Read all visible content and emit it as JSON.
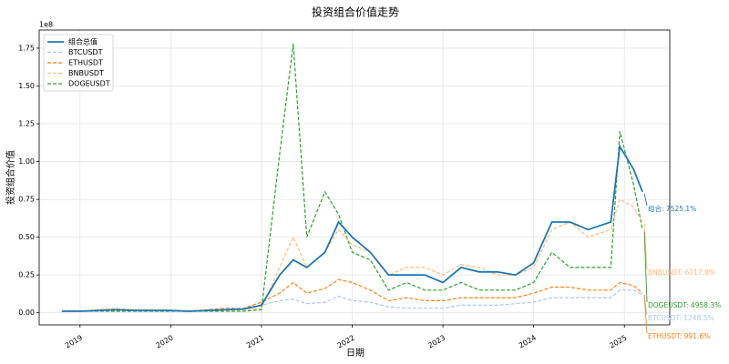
{
  "chart_data": {
    "type": "line",
    "title": "投资组合价值走势",
    "x_label": "日期",
    "y_label": "投资组合价值",
    "y_offset_label": "1e8",
    "x": [
      2018.8,
      2019.0,
      2019.2,
      2019.4,
      2019.6,
      2019.8,
      2020.0,
      2020.2,
      2020.4,
      2020.6,
      2020.8,
      2021.0,
      2021.2,
      2021.35,
      2021.5,
      2021.7,
      2021.85,
      2022.0,
      2022.2,
      2022.4,
      2022.6,
      2022.8,
      2023.0,
      2023.2,
      2023.4,
      2023.6,
      2023.8,
      2024.0,
      2024.2,
      2024.4,
      2024.6,
      2024.85,
      2024.95,
      2025.1,
      2025.2
    ],
    "series": [
      {
        "name": "组合总值",
        "color": "#1f77b4",
        "dashed": false,
        "values": [
          0.01,
          0.01,
          0.015,
          0.02,
          0.015,
          0.015,
          0.015,
          0.01,
          0.015,
          0.02,
          0.025,
          0.05,
          0.25,
          0.35,
          0.3,
          0.4,
          0.6,
          0.5,
          0.4,
          0.25,
          0.25,
          0.25,
          0.2,
          0.3,
          0.27,
          0.27,
          0.25,
          0.33,
          0.6,
          0.6,
          0.55,
          0.6,
          1.1,
          0.95,
          0.8
        ]
      },
      {
        "name": "BTCUSDT",
        "color": "#aec7e8",
        "dashed": true,
        "values": [
          0.01,
          0.01,
          0.015,
          0.02,
          0.015,
          0.015,
          0.015,
          0.01,
          0.015,
          0.02,
          0.03,
          0.05,
          0.08,
          0.09,
          0.06,
          0.07,
          0.11,
          0.08,
          0.07,
          0.04,
          0.03,
          0.03,
          0.03,
          0.05,
          0.05,
          0.05,
          0.06,
          0.07,
          0.1,
          0.1,
          0.1,
          0.1,
          0.15,
          0.15,
          0.12
        ]
      },
      {
        "name": "ETHUSDT",
        "color": "#ff7f0e",
        "dashed": true,
        "values": [
          0.01,
          0.01,
          0.015,
          0.02,
          0.015,
          0.015,
          0.015,
          0.01,
          0.02,
          0.03,
          0.03,
          0.07,
          0.13,
          0.2,
          0.13,
          0.16,
          0.22,
          0.2,
          0.15,
          0.08,
          0.1,
          0.08,
          0.08,
          0.1,
          0.1,
          0.1,
          0.1,
          0.13,
          0.17,
          0.17,
          0.15,
          0.15,
          0.2,
          0.18,
          0.13
        ]
      },
      {
        "name": "BNBUSDT",
        "color": "#ffbb78",
        "dashed": true,
        "values": [
          0.01,
          0.01,
          0.02,
          0.03,
          0.02,
          0.02,
          0.015,
          0.01,
          0.015,
          0.02,
          0.02,
          0.03,
          0.3,
          0.5,
          0.3,
          0.4,
          0.55,
          0.45,
          0.4,
          0.25,
          0.3,
          0.3,
          0.25,
          0.32,
          0.3,
          0.25,
          0.25,
          0.3,
          0.55,
          0.6,
          0.5,
          0.55,
          0.75,
          0.7,
          0.6
        ]
      },
      {
        "name": "DOGEUSDT",
        "color": "#2ca02c",
        "dashed": true,
        "values": [
          0.01,
          0.01,
          0.01,
          0.01,
          0.01,
          0.01,
          0.01,
          0.01,
          0.01,
          0.01,
          0.01,
          0.02,
          1.05,
          1.78,
          0.5,
          0.8,
          0.65,
          0.4,
          0.35,
          0.15,
          0.2,
          0.15,
          0.15,
          0.2,
          0.15,
          0.15,
          0.15,
          0.2,
          0.4,
          0.3,
          0.3,
          0.3,
          1.2,
          0.85,
          0.55
        ]
      }
    ],
    "annotations": [
      "组合: 7525.1%",
      "BNBUSDT: 6117.8%",
      "DOGEUSDT: 4958.3%",
      "BTCUSDT: 1248.5%",
      "ETHUSDT: 991.6%"
    ],
    "xlim": [
      2018.55,
      2025.5
    ],
    "ylim": [
      -0.08,
      1.87
    ],
    "xticks": [
      2019,
      2020,
      2021,
      2022,
      2023,
      2024,
      2025
    ],
    "yticks": [
      {
        "value": 0,
        "label": "0.00"
      },
      {
        "value": 0.25,
        "label": "0.25"
      },
      {
        "value": 0.5,
        "label": "0.50"
      },
      {
        "value": 0.75,
        "label": "0.75"
      },
      {
        "value": 1,
        "label": "1.00"
      },
      {
        "value": 1.25,
        "label": "1.25"
      },
      {
        "value": 1.5,
        "label": "1.50"
      },
      {
        "value": 1.75,
        "label": "1.75"
      }
    ],
    "grid": true,
    "legend": "upper-left"
  }
}
